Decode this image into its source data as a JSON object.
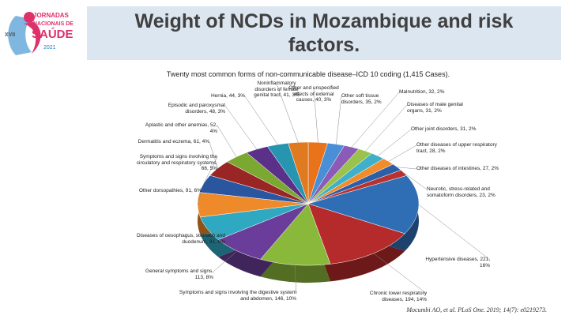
{
  "header": {
    "logo_edition": "XVII",
    "logo_line1": "JORNADAS",
    "logo_line2": "NACIONAIS DE",
    "logo_line3": "SAÚDE",
    "logo_year": "2021",
    "title": "Weight of NCDs in Mozambique and risk factors."
  },
  "chart_data": {
    "type": "pie",
    "title": "Twenty most common forms of non-communicable disease–ICD 10 coding (1,415 Cases).",
    "categories": [
      "Other and unspecified effects of external causes,",
      "Other soft tissue disorders,",
      "Malnutrition,",
      "Diseases of male genital organs,",
      "Other joint disorders,",
      "Other diseases of upper respiratory tract,",
      "Other diseases of intestines,",
      "Neurotic, stress-related and somatoform disorders,",
      "Hypertensive diseases,",
      "Chronic lower respiratory diseases,",
      "Symptoms and signs involving the digestive system and abdomen,",
      "General symptoms and signs,",
      "Diseases of oesophagus, stomach and duodenum,",
      "Other dorsopathies,",
      "Symptoms and signs involving the circulatory and respiratory systems,",
      "Dermatitis and eczema,",
      "Aplastic and other anemias,",
      "Episodic and paroxysmal disorders,",
      "Hernia,",
      "Noninflammatory disorders of female genital tract,"
    ],
    "values": [
      40,
      35,
      32,
      31,
      31,
      28,
      27,
      23,
      221,
      194,
      146,
      113,
      91,
      91,
      66,
      61,
      52,
      48,
      44,
      41
    ],
    "value_labels": [
      "40, 3%",
      "35, 2%",
      "32, 2%",
      "31, 2%",
      "31, 2%",
      "28, 2%",
      "27, 2%",
      "23, 2%",
      "221, 16%",
      "194, 14%",
      "146, 10%",
      "113, 8%",
      "91, 6%",
      "91, 6%",
      "66, 5%",
      "61, 4%",
      "52, 4%",
      "48, 3%",
      "44, 3%",
      "41, 3%"
    ],
    "colors": [
      "#e8731a",
      "#4a8fd6",
      "#8b5bb8",
      "#9bc24a",
      "#3fb0c9",
      "#f08c2c",
      "#2c5fa8",
      "#b83232",
      "#2f6eb5",
      "#b52a2a",
      "#8ab83a",
      "#6a3d9a",
      "#2fa8c2",
      "#ef8a2a",
      "#2a56a0",
      "#9a2525",
      "#7aa830",
      "#5a3088",
      "#2795b0",
      "#e07a20"
    ]
  },
  "citation": "Mocumbi AO, et al. PLoS One. 2019; 14(7): e0219273."
}
